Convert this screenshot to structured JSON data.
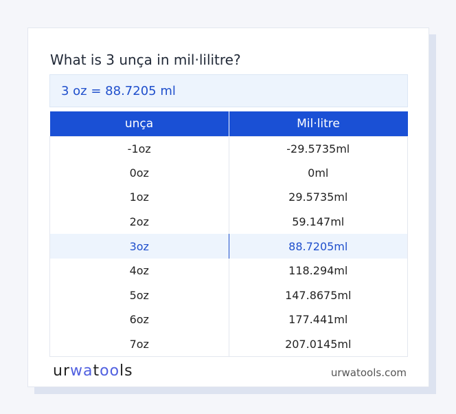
{
  "title": "What is 3 unça in mil·lilitre?",
  "result": "3 oz = 88.7205 ml",
  "table": {
    "headers": [
      "unça",
      "Mil·litre"
    ],
    "rows": [
      [
        "-1oz",
        "-29.5735ml"
      ],
      [
        "0oz",
        "0ml"
      ],
      [
        "1oz",
        "29.5735ml"
      ],
      [
        "2oz",
        "59.147ml"
      ],
      [
        "3oz",
        "88.7205ml"
      ],
      [
        "4oz",
        "118.294ml"
      ],
      [
        "5oz",
        "147.8675ml"
      ],
      [
        "6oz",
        "177.441ml"
      ],
      [
        "7oz",
        "207.0145ml"
      ]
    ],
    "highlighted_row": 4
  },
  "footer": {
    "logo": "urwatools",
    "site": "urwatools.com"
  },
  "colors": {
    "accent": "#1a50d5",
    "highlight_bg": "#edf4fd"
  }
}
